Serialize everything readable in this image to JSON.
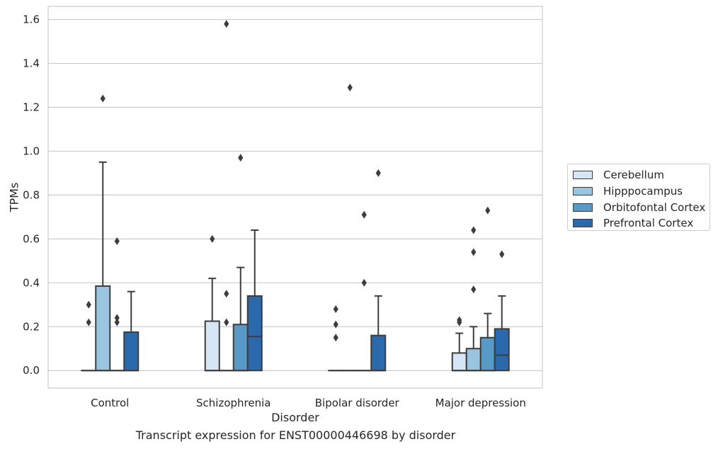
{
  "chart_data": {
    "type": "box",
    "title": "Transcript expression for ENST00000446698 by disorder",
    "xlabel": "Disorder",
    "ylabel": "TPMs",
    "ylim": [
      -0.08,
      1.66
    ],
    "yticks": [
      "0.0",
      "0.2",
      "0.4",
      "0.6",
      "0.8",
      "1.0",
      "1.2",
      "1.4",
      "1.6"
    ],
    "grid": "horizontal",
    "legend_position": "right",
    "categories": [
      "Control",
      "Schizophrenia",
      "Bipolar disorder",
      "Major depression"
    ],
    "series": [
      {
        "name": "Cerebellum",
        "color": "#d6e6f4",
        "boxes": [
          {
            "q1": 0,
            "median": 0,
            "q3": 0,
            "whisker_low": 0,
            "whisker_high": 0,
            "outliers": [
              0.22,
              0.3
            ]
          },
          {
            "q1": 0,
            "median": 0,
            "q3": 0.225,
            "whisker_low": 0,
            "whisker_high": 0.42,
            "outliers": [
              0.6
            ]
          },
          {
            "q1": 0,
            "median": 0,
            "q3": 0,
            "whisker_low": 0,
            "whisker_high": 0,
            "outliers": [
              0.15,
              0.21,
              0.28
            ]
          },
          {
            "q1": 0,
            "median": 0,
            "q3": 0.08,
            "whisker_low": 0,
            "whisker_high": 0.17,
            "outliers": [
              0.22,
              0.23
            ]
          }
        ]
      },
      {
        "name": "Hipppocampus",
        "color": "#9ac5e0",
        "boxes": [
          {
            "q1": 0,
            "median": 0,
            "q3": 0.385,
            "whisker_low": 0,
            "whisker_high": 0.95,
            "outliers": [
              1.24
            ]
          },
          {
            "q1": 0,
            "median": 0,
            "q3": 0,
            "whisker_low": 0,
            "whisker_high": 0,
            "outliers": [
              0.22,
              0.35,
              1.58
            ]
          },
          {
            "q1": 0,
            "median": 0,
            "q3": 0,
            "whisker_low": 0,
            "whisker_high": 0,
            "outliers": [
              1.29
            ]
          },
          {
            "q1": 0,
            "median": 0,
            "q3": 0.1,
            "whisker_low": 0,
            "whisker_high": 0.2,
            "outliers": [
              0.37,
              0.54,
              0.64
            ]
          }
        ]
      },
      {
        "name": "Orbitofontal Cortex",
        "color": "#5799c7",
        "boxes": [
          {
            "q1": 0,
            "median": 0,
            "q3": 0,
            "whisker_low": 0,
            "whisker_high": 0,
            "outliers": [
              0.22,
              0.24,
              0.59
            ]
          },
          {
            "q1": 0,
            "median": 0,
            "q3": 0.21,
            "whisker_low": 0,
            "whisker_high": 0.47,
            "outliers": [
              0.97
            ]
          },
          {
            "q1": 0,
            "median": 0,
            "q3": 0,
            "whisker_low": 0,
            "whisker_high": 0,
            "outliers": [
              0.4,
              0.71
            ]
          },
          {
            "q1": 0,
            "median": 0,
            "q3": 0.15,
            "whisker_low": 0,
            "whisker_high": 0.26,
            "outliers": [
              0.73
            ]
          }
        ]
      },
      {
        "name": "Prefrontal Cortex",
        "color": "#2a69ac",
        "boxes": [
          {
            "q1": 0,
            "median": 0,
            "q3": 0.175,
            "whisker_low": 0,
            "whisker_high": 0.36,
            "outliers": []
          },
          {
            "q1": 0,
            "median": 0.155,
            "q3": 0.34,
            "whisker_low": 0,
            "whisker_high": 0.64,
            "outliers": []
          },
          {
            "q1": 0,
            "median": 0,
            "q3": 0.16,
            "whisker_low": 0,
            "whisker_high": 0.34,
            "outliers": [
              0.9
            ]
          },
          {
            "q1": 0,
            "median": 0.07,
            "q3": 0.19,
            "whisker_low": 0,
            "whisker_high": 0.34,
            "outliers": [
              0.53
            ]
          }
        ]
      }
    ]
  }
}
